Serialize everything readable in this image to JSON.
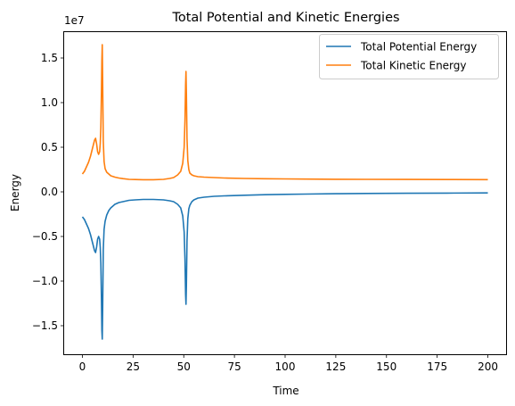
{
  "chart_data": {
    "type": "line",
    "title": "Total Potential and Kinetic Energies",
    "xlabel": "Time",
    "ylabel": "Energy",
    "y_offset_label": "1e7",
    "xlim": [
      -9,
      209
    ],
    "ylim": [
      -1.82,
      1.79
    ],
    "x_ticks": [
      0,
      25,
      50,
      75,
      100,
      125,
      150,
      175,
      200
    ],
    "x_tick_labels": [
      "0",
      "25",
      "50",
      "75",
      "100",
      "125",
      "150",
      "175",
      "200"
    ],
    "y_ticks": [
      -1.5,
      -1.0,
      -0.5,
      0.0,
      0.5,
      1.0,
      1.5
    ],
    "y_tick_labels": [
      "−1.5",
      "−1.0",
      "−0.5",
      "0.0",
      "0.5",
      "1.0",
      "1.5"
    ],
    "legend_position": "top-right",
    "grid": false,
    "series": [
      {
        "name": "Total Potential Energy",
        "color": "#1f77b4",
        "x": [
          0,
          1,
          2,
          3,
          4,
          5,
          6,
          6.5,
          7,
          7.5,
          8,
          8.5,
          8.8,
          9.1,
          9.4,
          9.6,
          9.8,
          10,
          10.3,
          10.7,
          11.2,
          12,
          13,
          14,
          16,
          18,
          20,
          23,
          26,
          30,
          35,
          40,
          43,
          45,
          47,
          48.5,
          49.5,
          50.2,
          50.6,
          50.9,
          51.1,
          51.3,
          51.6,
          52,
          52.5,
          53,
          54,
          55,
          57,
          60,
          65,
          70,
          80,
          90,
          100,
          110,
          125,
          140,
          160,
          180,
          200
        ],
        "y": [
          -0.28,
          -0.31,
          -0.36,
          -0.41,
          -0.48,
          -0.57,
          -0.66,
          -0.68,
          -0.62,
          -0.53,
          -0.5,
          -0.53,
          -0.62,
          -0.8,
          -1.2,
          -1.55,
          -1.65,
          -1.3,
          -0.65,
          -0.42,
          -0.33,
          -0.26,
          -0.21,
          -0.18,
          -0.14,
          -0.12,
          -0.11,
          -0.095,
          -0.09,
          -0.085,
          -0.085,
          -0.09,
          -0.1,
          -0.11,
          -0.14,
          -0.18,
          -0.27,
          -0.45,
          -0.75,
          -1.15,
          -1.26,
          -1.05,
          -0.55,
          -0.3,
          -0.19,
          -0.15,
          -0.11,
          -0.09,
          -0.07,
          -0.06,
          -0.05,
          -0.045,
          -0.038,
          -0.032,
          -0.028,
          -0.025,
          -0.021,
          -0.018,
          -0.016,
          -0.014,
          -0.012
        ]
      },
      {
        "name": "Total Kinetic Energy",
        "color": "#ff7f0e",
        "x": [
          0,
          1,
          2,
          3,
          4,
          5,
          6,
          6.5,
          7,
          7.5,
          8,
          8.5,
          8.8,
          9.1,
          9.4,
          9.6,
          9.8,
          10,
          10.3,
          10.7,
          11.2,
          12,
          13,
          14,
          16,
          18,
          20,
          23,
          26,
          30,
          35,
          40,
          43,
          45,
          47,
          48.5,
          49.5,
          50.2,
          50.6,
          50.9,
          51.1,
          51.3,
          51.6,
          52,
          52.5,
          53,
          54,
          55,
          57,
          60,
          65,
          70,
          80,
          90,
          100,
          110,
          125,
          140,
          160,
          180,
          200
        ],
        "y": [
          0.2,
          0.23,
          0.28,
          0.33,
          0.4,
          0.49,
          0.58,
          0.6,
          0.54,
          0.45,
          0.42,
          0.45,
          0.54,
          0.72,
          1.12,
          1.47,
          1.65,
          1.22,
          0.57,
          0.34,
          0.26,
          0.22,
          0.2,
          0.18,
          0.165,
          0.155,
          0.148,
          0.14,
          0.138,
          0.136,
          0.136,
          0.14,
          0.15,
          0.16,
          0.19,
          0.23,
          0.32,
          0.5,
          0.8,
          1.2,
          1.35,
          1.1,
          0.6,
          0.35,
          0.25,
          0.21,
          0.19,
          0.18,
          0.17,
          0.165,
          0.16,
          0.155,
          0.15,
          0.147,
          0.145,
          0.143,
          0.141,
          0.14,
          0.139,
          0.138,
          0.137
        ]
      }
    ]
  }
}
